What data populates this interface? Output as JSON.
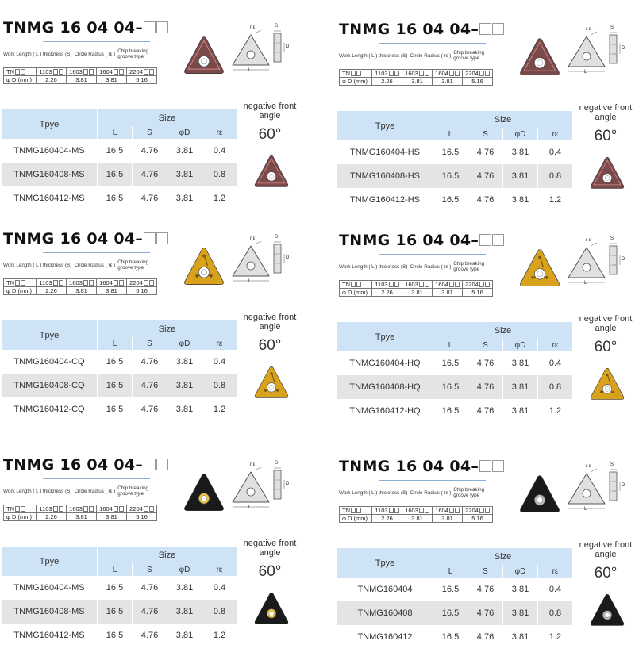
{
  "labels": {
    "work_length": "Work Length ( L ) thickness (S)",
    "circle_radius": "Circle Radius ( rε )",
    "chip_breaking": "Chip breaking groove type",
    "tn_label": "TN",
    "d_label": "φ D (mm)",
    "type_header": "Tpye",
    "size_header": "Size",
    "col_L": "L",
    "col_S": "S",
    "col_D": "φD",
    "col_r": "rε",
    "neg_front": "negative front angle",
    "angle": "60°",
    "diagram_r": "r ε",
    "diagram_S": "S",
    "diagram_D": "D",
    "diagram_L": "L"
  },
  "spec_table": {
    "codes": [
      "1103",
      "1603",
      "1604",
      "2204"
    ],
    "diameters": [
      "2.26",
      "3.81",
      "3.81",
      "5.16"
    ]
  },
  "panels": [
    {
      "code": "TNMG 16 04 04–",
      "insert_color": "#7a4a4a",
      "insert_style": "ms",
      "rows": [
        {
          "type": "TNMG160404-MS",
          "L": "16.5",
          "S": "4.76",
          "D": "3.81",
          "r": "0.4"
        },
        {
          "type": "TNMG160408-MS",
          "L": "16.5",
          "S": "4.76",
          "D": "3.81",
          "r": "0.8"
        },
        {
          "type": "TNMG160412-MS",
          "L": "16.5",
          "S": "4.76",
          "D": "3.81",
          "r": "1.2"
        }
      ]
    },
    {
      "code": "TNMG 16 04 04–",
      "insert_color": "#7a4a4a",
      "insert_style": "hs",
      "rows": [
        {
          "type": "TNMG160404-HS",
          "L": "16.5",
          "S": "4.76",
          "D": "3.81",
          "r": "0.4"
        },
        {
          "type": "TNMG160408-HS",
          "L": "16.5",
          "S": "4.76",
          "D": "3.81",
          "r": "0.8"
        },
        {
          "type": "TNMG160412-HS",
          "L": "16.5",
          "S": "4.76",
          "D": "3.81",
          "r": "1.2"
        }
      ]
    },
    {
      "code": "TNMG 16 04 04–",
      "insert_color": "#d9a21c",
      "insert_style": "cq",
      "rows": [
        {
          "type": "TNMG160404-CQ",
          "L": "16.5",
          "S": "4.76",
          "D": "3.81",
          "r": "0.4"
        },
        {
          "type": "TNMG160408-CQ",
          "L": "16.5",
          "S": "4.76",
          "D": "3.81",
          "r": "0.8"
        },
        {
          "type": "TNMG160412-CQ",
          "L": "16.5",
          "S": "4.76",
          "D": "3.81",
          "r": "1.2"
        }
      ]
    },
    {
      "code": "TNMG 16 04 04–",
      "insert_color": "#d9a21c",
      "insert_style": "hq",
      "rows": [
        {
          "type": "TNMG160404-HQ",
          "L": "16.5",
          "S": "4.76",
          "D": "3.81",
          "r": "0.4"
        },
        {
          "type": "TNMG160408-HQ",
          "L": "16.5",
          "S": "4.76",
          "D": "3.81",
          "r": "0.8"
        },
        {
          "type": "TNMG160412-HQ",
          "L": "16.5",
          "S": "4.76",
          "D": "3.81",
          "r": "1.2"
        }
      ]
    },
    {
      "code": "TNMG 16 04 04–",
      "insert_color": "#1a1a1a",
      "insert_style": "msb",
      "rows": [
        {
          "type": "TNMG160404-MS",
          "L": "16.5",
          "S": "4.76",
          "D": "3.81",
          "r": "0.4"
        },
        {
          "type": "TNMG160408-MS",
          "L": "16.5",
          "S": "4.76",
          "D": "3.81",
          "r": "0.8"
        },
        {
          "type": "TNMG160412-MS",
          "L": "16.5",
          "S": "4.76",
          "D": "3.81",
          "r": "1.2"
        }
      ]
    },
    {
      "code": "TNMG 16 04 04–",
      "insert_color": "#1a1a1a",
      "insert_style": "plain",
      "rows": [
        {
          "type": "TNMG160404",
          "L": "16.5",
          "S": "4.76",
          "D": "3.81",
          "r": "0.4"
        },
        {
          "type": "TNMG160408",
          "L": "16.5",
          "S": "4.76",
          "D": "3.81",
          "r": "0.8"
        },
        {
          "type": "TNMG160412",
          "L": "16.5",
          "S": "4.76",
          "D": "3.81",
          "r": "1.2"
        }
      ]
    }
  ]
}
